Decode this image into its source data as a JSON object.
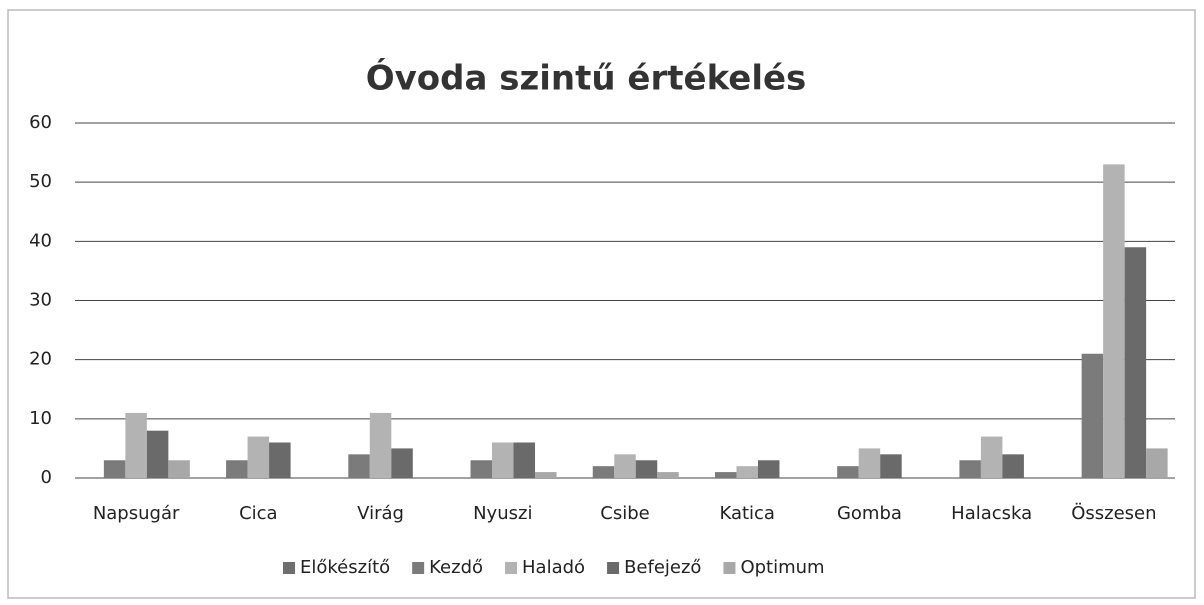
{
  "chart_data": {
    "type": "bar",
    "title": "Óvoda szintű értékelés",
    "categories": [
      "Napsugár",
      "Cica",
      "Virág",
      "Nyuszi",
      "Csibe",
      "Katica",
      "Gomba",
      "Halacska",
      "Összesen"
    ],
    "series": [
      {
        "name": "Előkészítő",
        "color": "#6e6e6e",
        "values": [
          0,
          0,
          0,
          0,
          0,
          0,
          0,
          0,
          0
        ]
      },
      {
        "name": "Kezdő",
        "color": "#7b7b7b",
        "values": [
          3,
          3,
          4,
          3,
          2,
          1,
          2,
          3,
          21
        ]
      },
      {
        "name": "Haladó",
        "color": "#b3b3b3",
        "values": [
          11,
          7,
          11,
          6,
          4,
          2,
          5,
          7,
          53
        ]
      },
      {
        "name": "Befejező",
        "color": "#6a6a6a",
        "values": [
          8,
          6,
          5,
          6,
          3,
          3,
          4,
          4,
          39
        ]
      },
      {
        "name": "Optimum",
        "color": "#a8a8a8",
        "values": [
          3,
          0,
          0,
          1,
          1,
          0,
          0,
          0,
          5
        ]
      }
    ],
    "ylim": [
      0,
      60
    ],
    "yticks": [
      0,
      10,
      20,
      30,
      40,
      50,
      60
    ],
    "grid": true,
    "legend": "bottom"
  }
}
